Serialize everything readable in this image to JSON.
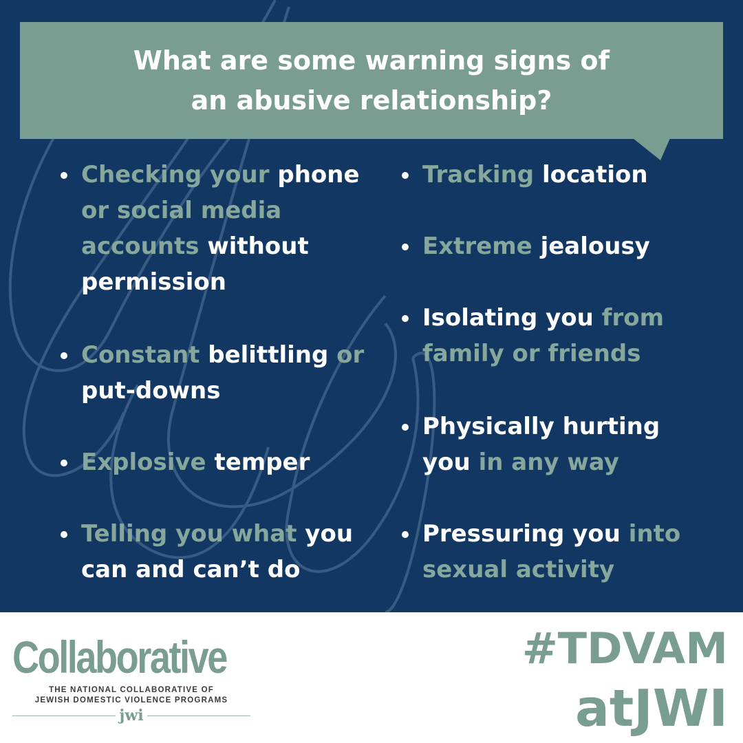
{
  "colors": {
    "background": "#123763",
    "accent": "#7a9d91",
    "accent_text": "#86a89c",
    "text": "#ffffff",
    "footer": "#ffffff"
  },
  "headline": {
    "line1": "What are some warning signs of",
    "line2": "an abusive relationship?"
  },
  "left_items": [
    [
      "Checking your",
      " phone",
      " or social media accounts",
      " without permission"
    ],
    [
      "Constant",
      " belittling",
      " or",
      " put-downs"
    ],
    [
      "Explosive",
      " temper"
    ],
    [
      "Telling you what",
      " you can and can’t do"
    ]
  ],
  "right_items": [
    [
      "Tracking",
      " location"
    ],
    [
      "Extreme",
      " jealousy"
    ],
    [
      "Isolating you",
      " from family or friends"
    ],
    [
      "Physically hurting you",
      " in any way"
    ],
    [
      "Pressuring you",
      " into sexual activity"
    ]
  ],
  "footer": {
    "brand": "Collaborative",
    "brand_sub_line1": "THE NATIONAL COLLABORATIVE OF",
    "brand_sub_line2": "JEWISH DOMESTIC VIOLENCE PROGRAMS",
    "brand_mark": "jwi",
    "hashtag_line1": "#TDVAM",
    "hashtag_line2": "atJWI"
  },
  "icons": {
    "bullet": "bullet-dot-icon",
    "speech_tail": "speech-tail-icon",
    "decor": "script-letter-flourish"
  }
}
